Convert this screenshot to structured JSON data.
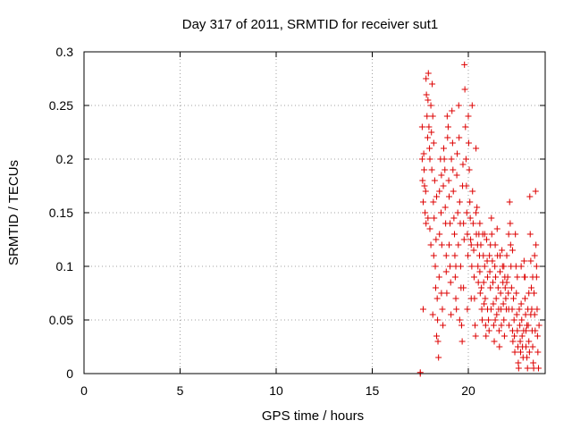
{
  "chart_data": {
    "type": "scatter",
    "title": "Day 317 of 2011, SRMTID for receiver sut1",
    "xlabel": "GPS time / hours",
    "ylabel": "SRMTID / TECUs",
    "xlim": [
      0,
      24
    ],
    "ylim": [
      0,
      0.3
    ],
    "grid": true,
    "marker": "+",
    "color": "#dd0000",
    "x_ticks": [
      0,
      5,
      10,
      15,
      20
    ],
    "x_tick_labels": [
      "0",
      "5",
      "10",
      "15",
      "20"
    ],
    "y_ticks": [
      0,
      0.05,
      0.1,
      0.15,
      0.2,
      0.25,
      0.3
    ],
    "y_tick_labels": [
      "0",
      "0.05",
      "0.1",
      "0.15",
      "0.2",
      "0.25",
      "0.3"
    ],
    "series": [
      {
        "name": "sut1",
        "points": [
          [
            17.5,
            0.0
          ],
          [
            17.5,
            0.001
          ],
          [
            17.6,
            0.23
          ],
          [
            17.6,
            0.2
          ],
          [
            17.62,
            0.18
          ],
          [
            17.65,
            0.16
          ],
          [
            17.68,
            0.205
          ],
          [
            17.7,
            0.19
          ],
          [
            17.72,
            0.175
          ],
          [
            17.75,
            0.15
          ],
          [
            17.78,
            0.17
          ],
          [
            17.8,
            0.14
          ],
          [
            17.8,
            0.275
          ],
          [
            17.82,
            0.26
          ],
          [
            17.85,
            0.24
          ],
          [
            17.88,
            0.22
          ],
          [
            17.9,
            0.255
          ],
          [
            17.92,
            0.28
          ],
          [
            17.95,
            0.23
          ],
          [
            17.98,
            0.21
          ],
          [
            18.0,
            0.135
          ],
          [
            18.0,
            0.2
          ],
          [
            18.05,
            0.25
          ],
          [
            18.05,
            0.12
          ],
          [
            18.08,
            0.225
          ],
          [
            18.1,
            0.19
          ],
          [
            18.12,
            0.27
          ],
          [
            18.15,
            0.24
          ],
          [
            18.18,
            0.16
          ],
          [
            18.2,
            0.11
          ],
          [
            18.2,
            0.215
          ],
          [
            18.22,
            0.145
          ],
          [
            18.25,
            0.18
          ],
          [
            18.28,
            0.1
          ],
          [
            18.3,
            0.08
          ],
          [
            18.32,
            0.125
          ],
          [
            18.35,
            0.165
          ],
          [
            18.38,
            0.07
          ],
          [
            18.4,
            0.05
          ],
          [
            18.42,
            0.03
          ],
          [
            18.45,
            0.015
          ],
          [
            18.48,
            0.09
          ],
          [
            18.5,
            0.13
          ],
          [
            18.5,
            0.17
          ],
          [
            18.55,
            0.2
          ],
          [
            18.58,
            0.15
          ],
          [
            18.6,
            0.185
          ],
          [
            18.62,
            0.12
          ],
          [
            18.65,
            0.06
          ],
          [
            18.68,
            0.045
          ],
          [
            18.7,
            0.175
          ],
          [
            18.72,
            0.21
          ],
          [
            18.75,
            0.2
          ],
          [
            18.78,
            0.19
          ],
          [
            18.8,
            0.155
          ],
          [
            18.82,
            0.14
          ],
          [
            18.85,
            0.095
          ],
          [
            18.88,
            0.075
          ],
          [
            18.9,
            0.24
          ],
          [
            18.92,
            0.22
          ],
          [
            18.95,
            0.23
          ],
          [
            18.98,
            0.18
          ],
          [
            19.0,
            0.165
          ],
          [
            19.0,
            0.12
          ],
          [
            19.05,
            0.1
          ],
          [
            19.08,
            0.085
          ],
          [
            19.1,
            0.055
          ],
          [
            19.12,
            0.2
          ],
          [
            19.15,
            0.245
          ],
          [
            19.18,
            0.215
          ],
          [
            19.2,
            0.19
          ],
          [
            19.22,
            0.17
          ],
          [
            19.25,
            0.145
          ],
          [
            19.28,
            0.13
          ],
          [
            19.3,
            0.11
          ],
          [
            19.32,
            0.09
          ],
          [
            19.35,
            0.07
          ],
          [
            19.38,
            0.06
          ],
          [
            19.4,
            0.185
          ],
          [
            19.42,
            0.205
          ],
          [
            19.45,
            0.15
          ],
          [
            19.48,
            0.12
          ],
          [
            19.5,
            0.25
          ],
          [
            19.52,
            0.22
          ],
          [
            19.55,
            0.16
          ],
          [
            19.58,
            0.14
          ],
          [
            19.6,
            0.1
          ],
          [
            19.62,
            0.08
          ],
          [
            19.65,
            0.045
          ],
          [
            19.68,
            0.03
          ],
          [
            19.7,
            0.175
          ],
          [
            19.72,
            0.195
          ],
          [
            19.75,
            0.14
          ],
          [
            19.78,
            0.125
          ],
          [
            19.8,
            0.288
          ],
          [
            19.82,
            0.265
          ],
          [
            19.85,
            0.23
          ],
          [
            19.88,
            0.2
          ],
          [
            19.9,
            0.175
          ],
          [
            19.92,
            0.15
          ],
          [
            19.95,
            0.13
          ],
          [
            19.98,
            0.11
          ],
          [
            20.0,
            0.24
          ],
          [
            20.02,
            0.215
          ],
          [
            20.05,
            0.19
          ],
          [
            20.08,
            0.16
          ],
          [
            20.1,
            0.145
          ],
          [
            20.12,
            0.125
          ],
          [
            20.15,
            0.12
          ],
          [
            20.18,
            0.1
          ],
          [
            20.2,
            0.25
          ],
          [
            20.22,
            0.17
          ],
          [
            20.25,
            0.14
          ],
          [
            20.28,
            0.115
          ],
          [
            20.3,
            0.09
          ],
          [
            20.32,
            0.07
          ],
          [
            20.35,
            0.045
          ],
          [
            20.38,
            0.035
          ],
          [
            20.4,
            0.21
          ],
          [
            20.42,
            0.13
          ],
          [
            20.45,
            0.155
          ],
          [
            20.48,
            0.12
          ],
          [
            20.5,
            0.1
          ],
          [
            20.52,
            0.085
          ],
          [
            20.55,
            0.13
          ],
          [
            20.58,
            0.11
          ],
          [
            20.6,
            0.095
          ],
          [
            20.62,
            0.075
          ],
          [
            20.65,
            0.12
          ],
          [
            20.68,
            0.08
          ],
          [
            20.7,
            0.06
          ],
          [
            20.72,
            0.05
          ],
          [
            20.75,
            0.13
          ],
          [
            20.78,
            0.11
          ],
          [
            20.8,
            0.085
          ],
          [
            20.82,
            0.065
          ],
          [
            20.85,
            0.1
          ],
          [
            20.88,
            0.07
          ],
          [
            20.9,
            0.045
          ],
          [
            20.92,
            0.035
          ],
          [
            20.95,
            0.125
          ],
          [
            20.98,
            0.105
          ],
          [
            21.0,
            0.09
          ],
          [
            21.0,
            0.06
          ],
          [
            21.05,
            0.05
          ],
          [
            21.08,
            0.04
          ],
          [
            21.1,
            0.11
          ],
          [
            21.12,
            0.095
          ],
          [
            21.15,
            0.08
          ],
          [
            21.18,
            0.06
          ],
          [
            21.2,
            0.145
          ],
          [
            21.22,
            0.13
          ],
          [
            21.25,
            0.105
          ],
          [
            21.28,
            0.085
          ],
          [
            21.3,
            0.065
          ],
          [
            21.32,
            0.045
          ],
          [
            21.35,
            0.03
          ],
          [
            21.38,
            0.1
          ],
          [
            21.4,
            0.12
          ],
          [
            21.42,
            0.09
          ],
          [
            21.45,
            0.07
          ],
          [
            21.48,
            0.055
          ],
          [
            21.5,
            0.135
          ],
          [
            21.52,
            0.11
          ],
          [
            21.55,
            0.08
          ],
          [
            21.58,
            0.06
          ],
          [
            21.6,
            0.04
          ],
          [
            21.62,
            0.025
          ],
          [
            21.65,
            0.095
          ],
          [
            21.68,
            0.075
          ],
          [
            21.7,
            0.06
          ],
          [
            21.72,
            0.045
          ],
          [
            21.75,
            0.115
          ],
          [
            21.78,
            0.1
          ],
          [
            21.8,
            0.085
          ],
          [
            21.82,
            0.065
          ],
          [
            21.85,
            0.05
          ],
          [
            21.88,
            0.035
          ],
          [
            21.9,
            0.09
          ],
          [
            21.92,
            0.08
          ],
          [
            21.95,
            0.07
          ],
          [
            21.98,
            0.06
          ],
          [
            22.0,
            0.085
          ],
          [
            22.0,
            0.11
          ],
          [
            22.05,
            0.09
          ],
          [
            22.08,
            0.075
          ],
          [
            22.1,
            0.06
          ],
          [
            22.12,
            0.045
          ],
          [
            22.15,
            0.16
          ],
          [
            22.18,
            0.14
          ],
          [
            22.2,
            0.12
          ],
          [
            22.22,
            0.1
          ],
          [
            22.25,
            0.08
          ],
          [
            22.28,
            0.06
          ],
          [
            22.3,
            0.04
          ],
          [
            22.32,
            0.03
          ],
          [
            22.35,
            0.07
          ],
          [
            22.38,
            0.05
          ],
          [
            22.4,
            0.035
          ],
          [
            22.42,
            0.02
          ],
          [
            22.45,
            0.13
          ],
          [
            22.48,
            0.1
          ],
          [
            22.5,
            0.075
          ],
          [
            22.52,
            0.055
          ],
          [
            22.55,
            0.04
          ],
          [
            22.58,
            0.025
          ],
          [
            22.6,
            0.01
          ],
          [
            22.62,
            0.005
          ],
          [
            22.65,
            0.06
          ],
          [
            22.68,
            0.045
          ],
          [
            22.7,
            0.03
          ],
          [
            22.72,
            0.02
          ],
          [
            22.75,
            0.065
          ],
          [
            22.78,
            0.05
          ],
          [
            22.8,
            0.035
          ],
          [
            22.82,
            0.025
          ],
          [
            22.85,
            0.015
          ],
          [
            22.88,
            0.04
          ],
          [
            22.9,
            0.105
          ],
          [
            22.92,
            0.09
          ],
          [
            22.95,
            0.07
          ],
          [
            22.98,
            0.055
          ],
          [
            23.0,
            0.04
          ],
          [
            23.0,
            0.025
          ],
          [
            23.05,
            0.015
          ],
          [
            23.08,
            0.005
          ],
          [
            23.1,
            0.06
          ],
          [
            23.12,
            0.045
          ],
          [
            23.15,
            0.03
          ],
          [
            23.18,
            0.02
          ],
          [
            23.2,
            0.165
          ],
          [
            23.22,
            0.13
          ],
          [
            23.25,
            0.105
          ],
          [
            23.28,
            0.08
          ],
          [
            23.3,
            0.06
          ],
          [
            23.32,
            0.04
          ],
          [
            23.35,
            0.025
          ],
          [
            23.38,
            0.01
          ],
          [
            23.4,
            0.005
          ],
          [
            23.42,
            0.075
          ],
          [
            23.45,
            0.055
          ],
          [
            23.48,
            0.04
          ],
          [
            23.5,
            0.17
          ],
          [
            23.52,
            0.12
          ],
          [
            23.55,
            0.09
          ],
          [
            23.58,
            0.06
          ],
          [
            23.6,
            0.035
          ],
          [
            23.62,
            0.02
          ],
          [
            23.65,
            0.005
          ],
          [
            23.68,
            0.045
          ],
          [
            17.65,
            0.06
          ],
          [
            17.9,
            0.145
          ],
          [
            18.15,
            0.055
          ],
          [
            18.35,
            0.035
          ],
          [
            18.6,
            0.075
          ],
          [
            18.85,
            0.11
          ],
          [
            19.05,
            0.14
          ],
          [
            19.35,
            0.1
          ],
          [
            19.55,
            0.05
          ],
          [
            19.75,
            0.08
          ],
          [
            19.95,
            0.06
          ],
          [
            20.15,
            0.07
          ],
          [
            20.4,
            0.15
          ],
          [
            20.6,
            0.14
          ],
          [
            20.85,
            0.13
          ],
          [
            21.15,
            0.12
          ],
          [
            21.4,
            0.05
          ],
          [
            21.65,
            0.11
          ],
          [
            21.85,
            0.1
          ],
          [
            22.1,
            0.13
          ],
          [
            22.3,
            0.115
          ],
          [
            22.55,
            0.09
          ],
          [
            22.75,
            0.1
          ],
          [
            22.95,
            0.09
          ],
          [
            23.15,
            0.075
          ],
          [
            23.35,
            0.09
          ],
          [
            23.55,
            0.1
          ],
          [
            23.45,
            0.11
          ],
          [
            23.25,
            0.055
          ],
          [
            23.05,
            0.045
          ]
        ]
      }
    ]
  }
}
